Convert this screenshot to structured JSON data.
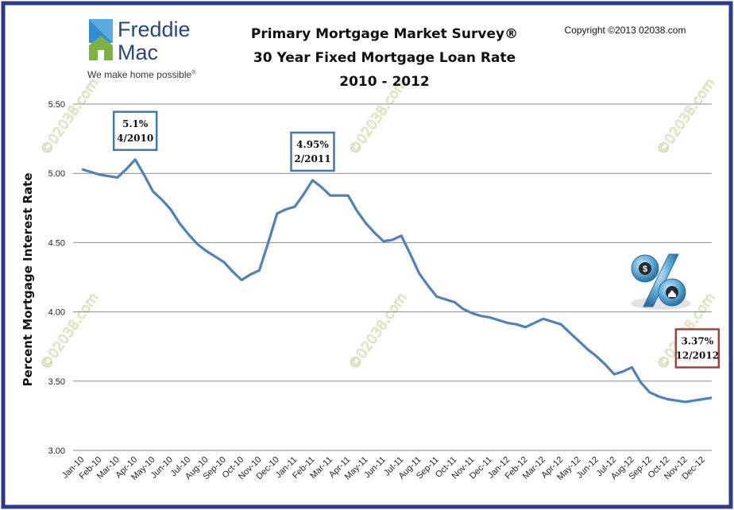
{
  "logo": {
    "line1": "Freddie",
    "line2": "Mac",
    "tagline": "We make home possible",
    "tagline_mark": "®",
    "house_blue": "#2f8dd1",
    "house_green": "#7cb342"
  },
  "copyright": "Copyright ©2013 02038.com",
  "watermark": "©02038.com",
  "chart_data": {
    "type": "line",
    "title_lines": [
      "Primary Mortgage Market Survey®",
      "30 Year Fixed Mortgage Loan Rate",
      "2010 - 2012"
    ],
    "ylabel": "Percent Mortgage Interest  Rate",
    "xlabel": "",
    "ylim": [
      3.0,
      5.5
    ],
    "y_ticks": [
      "5.50",
      "5.00",
      "4.50",
      "4.00",
      "3.50",
      "3.00"
    ],
    "y_tick_values": [
      5.5,
      5.0,
      4.5,
      4.0,
      3.5,
      3.0
    ],
    "grid": true,
    "line_color": "#4f81bd",
    "categories": [
      "Jan-10",
      "Feb-10",
      "Mar-10",
      "Apr-10",
      "May-10",
      "Jun-10",
      "Jul-10",
      "Aug-10",
      "Sep-10",
      "Oct-10",
      "Nov-10",
      "Dec-10",
      "Jan-11",
      "Feb-11",
      "Mar-11",
      "Apr-11",
      "May-11",
      "Jun-11",
      "Jul-11",
      "Aug-11",
      "Sep-11",
      "Oct-11",
      "Nov-11",
      "Dec-11",
      "Jan-12",
      "Feb-12",
      "Mar-12",
      "Apr-12",
      "May-12",
      "Jun-12",
      "Jul-12",
      "Aug-12",
      "Sep-12",
      "Oct-12",
      "Nov-12",
      "Dec-12"
    ],
    "x": [
      0,
      0.5,
      1,
      1.5,
      2,
      2.5,
      3,
      3.5,
      4,
      4.5,
      5,
      5.5,
      6,
      6.5,
      7,
      7.5,
      8,
      8.5,
      9,
      9.5,
      10,
      10.5,
      11,
      11.5,
      12,
      12.5,
      13,
      13.5,
      14,
      14.5,
      15,
      15.5,
      16,
      16.5,
      17,
      17.5,
      18,
      18.5,
      19,
      19.5,
      20,
      20.5,
      21,
      21.5,
      22,
      22.5,
      23,
      23.5,
      24,
      24.5,
      25,
      25.5,
      26,
      26.5,
      27,
      27.5,
      28,
      28.5,
      29,
      29.5,
      30,
      30.5,
      31,
      31.5,
      32,
      32.5,
      33,
      33.5,
      34,
      34.5,
      35,
      35.5
    ],
    "values": [
      5.03,
      5.01,
      4.99,
      4.98,
      4.97,
      5.03,
      5.1,
      4.99,
      4.87,
      4.81,
      4.74,
      4.64,
      4.56,
      4.49,
      4.44,
      4.4,
      4.36,
      4.29,
      4.23,
      4.27,
      4.3,
      4.5,
      4.71,
      4.74,
      4.76,
      4.85,
      4.95,
      4.9,
      4.84,
      4.84,
      4.84,
      4.73,
      4.64,
      4.57,
      4.51,
      4.52,
      4.55,
      4.42,
      4.28,
      4.19,
      4.11,
      4.09,
      4.07,
      4.02,
      3.99,
      3.97,
      3.96,
      3.94,
      3.92,
      3.91,
      3.89,
      3.92,
      3.95,
      3.93,
      3.91,
      3.85,
      3.79,
      3.73,
      3.68,
      3.62,
      3.55,
      3.57,
      3.6,
      3.49,
      3.42,
      3.39,
      3.37,
      3.36,
      3.35,
      3.36,
      3.37,
      3.38
    ],
    "annotations": [
      {
        "line1": "5.1%",
        "line2": "4/2010",
        "x": 3,
        "y": 5.1,
        "box_color": "#3f77b7"
      },
      {
        "line1": "4.95%",
        "line2": "2/2011",
        "x": 13,
        "y": 4.95,
        "box_color": "#3f77b7"
      },
      {
        "line1": "3.37%",
        "line2": "12/2012",
        "x": 35,
        "y": 3.37,
        "box_color": "#b03a3a"
      }
    ]
  },
  "colors": {
    "frame": "#2b3990",
    "grid": "#8c8c8c"
  },
  "icon": "percent-sign-3d-icon"
}
